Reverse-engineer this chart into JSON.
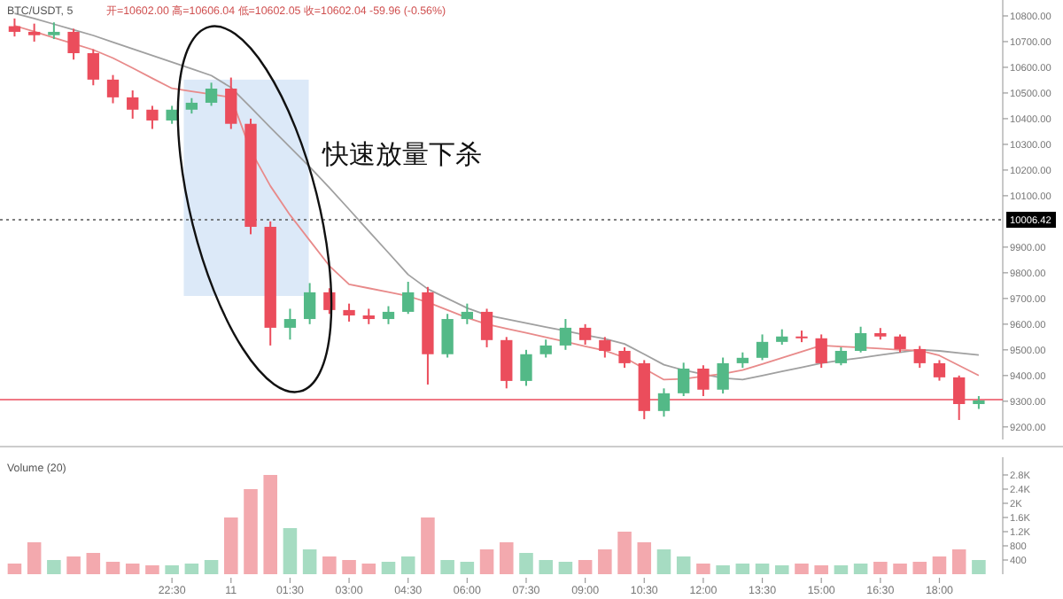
{
  "chart_data": [
    {
      "type": "candlestick",
      "title": "BTC/USDT, 5",
      "subtitle": "开=10602.00 高=10606.04 低=10602.05 收=10602.04 -59.96 (-0.56%)",
      "categories": [
        null,
        null,
        null,
        null,
        null,
        null,
        null,
        null,
        null,
        null,
        null,
        null,
        null,
        null,
        null,
        null,
        null,
        null,
        null,
        null,
        null,
        null,
        null,
        null,
        null,
        null,
        null,
        null,
        null,
        null,
        null,
        null,
        null,
        null,
        null,
        null,
        null,
        null,
        null,
        null,
        null,
        null,
        null,
        null,
        null,
        null,
        null,
        null,
        null,
        null
      ],
      "ohlc": [
        [
          10760,
          10790,
          10720,
          10738
        ],
        [
          10738,
          10770,
          10700,
          10725
        ],
        [
          10725,
          10775,
          10710,
          10738
        ],
        [
          10738,
          10750,
          10630,
          10655
        ],
        [
          10655,
          10670,
          10530,
          10552
        ],
        [
          10552,
          10570,
          10460,
          10483
        ],
        [
          10483,
          10510,
          10400,
          10435
        ],
        [
          10435,
          10450,
          10360,
          10393
        ],
        [
          10393,
          10450,
          10380,
          10435
        ],
        [
          10435,
          10480,
          10420,
          10462
        ],
        [
          10462,
          10540,
          10450,
          10517
        ],
        [
          10517,
          10560,
          10360,
          10380
        ],
        [
          10380,
          10400,
          9950,
          9979
        ],
        [
          9979,
          10000,
          9517,
          9586
        ],
        [
          9586,
          9660,
          9540,
          9620
        ],
        [
          9620,
          9760,
          9600,
          9724
        ],
        [
          9724,
          9740,
          9640,
          9655
        ],
        [
          9655,
          9680,
          9610,
          9634
        ],
        [
          9634,
          9660,
          9600,
          9620
        ],
        [
          9620,
          9670,
          9600,
          9648
        ],
        [
          9648,
          9765,
          9640,
          9724
        ],
        [
          9724,
          9745,
          9365,
          9483
        ],
        [
          9483,
          9640,
          9470,
          9620
        ],
        [
          9620,
          9680,
          9600,
          9648
        ],
        [
          9648,
          9660,
          9510,
          9538
        ],
        [
          9538,
          9550,
          9350,
          9379
        ],
        [
          9379,
          9500,
          9360,
          9483
        ],
        [
          9483,
          9540,
          9470,
          9517
        ],
        [
          9517,
          9620,
          9500,
          9586
        ],
        [
          9586,
          9600,
          9520,
          9538
        ],
        [
          9538,
          9550,
          9470,
          9496
        ],
        [
          9496,
          9510,
          9430,
          9448
        ],
        [
          9448,
          9460,
          9230,
          9262
        ],
        [
          9262,
          9350,
          9240,
          9331
        ],
        [
          9331,
          9450,
          9320,
          9427
        ],
        [
          9427,
          9440,
          9320,
          9345
        ],
        [
          9345,
          9470,
          9330,
          9448
        ],
        [
          9448,
          9490,
          9430,
          9469
        ],
        [
          9469,
          9560,
          9460,
          9531
        ],
        [
          9531,
          9580,
          9520,
          9552
        ],
        [
          9552,
          9575,
          9530,
          9545
        ],
        [
          9545,
          9560,
          9430,
          9448
        ],
        [
          9448,
          9510,
          9440,
          9496
        ],
        [
          9496,
          9590,
          9490,
          9565
        ],
        [
          9565,
          9585,
          9540,
          9552
        ],
        [
          9552,
          9560,
          9490,
          9503
        ],
        [
          9503,
          9515,
          9430,
          9448
        ],
        [
          9448,
          9460,
          9380,
          9393
        ],
        [
          9393,
          9400,
          9227,
          9289
        ],
        [
          9289,
          9320,
          9270,
          9303
        ]
      ],
      "colors": [
        "#eb4d5c",
        "#eb4d5c",
        "#53b987",
        "#eb4d5c",
        "#eb4d5c",
        "#eb4d5c",
        "#eb4d5c",
        "#eb4d5c",
        "#53b987",
        "#53b987",
        "#53b987",
        "#eb4d5c",
        "#eb4d5c",
        "#eb4d5c",
        "#53b987",
        "#53b987",
        "#eb4d5c",
        "#eb4d5c",
        "#eb4d5c",
        "#53b987",
        "#53b987",
        "#eb4d5c",
        "#53b987",
        "#53b987",
        "#eb4d5c",
        "#eb4d5c",
        "#53b987",
        "#53b987",
        "#53b987",
        "#eb4d5c",
        "#eb4d5c",
        "#eb4d5c",
        "#eb4d5c",
        "#53b987",
        "#53b987",
        "#eb4d5c",
        "#53b987",
        "#53b987",
        "#53b987",
        "#53b987",
        "#eb4d5c",
        "#eb4d5c",
        "#53b987",
        "#53b987",
        "#eb4d5c",
        "#eb4d5c",
        "#eb4d5c",
        "#eb4d5c",
        "#eb4d5c",
        "#53b987"
      ],
      "series": [
        {
          "type": "line",
          "color": "#a0a0a0",
          "values": [
            10810,
            10790,
            10768,
            10746,
            10724,
            10698,
            10672,
            10646,
            10620,
            10594,
            10568,
            10521,
            10444,
            10366,
            10289,
            10212,
            10131,
            10047,
            9962,
            9878,
            9793,
            9737,
            9700,
            9663,
            9635,
            9620,
            9604,
            9589,
            9574,
            9558,
            9543,
            9523,
            9483,
            9442,
            9421,
            9405,
            9390,
            9384,
            9400,
            9416,
            9432,
            9448,
            9459,
            9469,
            9480,
            9490,
            9501,
            9496,
            9488,
            9480
          ]
        },
        {
          "type": "line",
          "color": "#e88a8a",
          "values": [
            10762,
            10739,
            10715,
            10692,
            10668,
            10636,
            10597,
            10557,
            10518,
            10506,
            10495,
            10483,
            10276,
            10138,
            10025,
            9926,
            9827,
            9755,
            9740,
            9725,
            9709,
            9685,
            9655,
            9625,
            9600,
            9583,
            9566,
            9549,
            9532,
            9514,
            9497,
            9470,
            9427,
            9384,
            9387,
            9397,
            9407,
            9421,
            9445,
            9469,
            9493,
            9517,
            9513,
            9509,
            9505,
            9500,
            9497,
            9478,
            9439,
            9400
          ]
        }
      ],
      "ylim": [
        9151,
        10862
      ],
      "yticks": [
        {
          "value": 9200,
          "label": "9200.00"
        },
        {
          "value": 9300,
          "label": "9300.00"
        },
        {
          "value": 9400,
          "label": "9400.00"
        },
        {
          "value": 9500,
          "label": "9500.00"
        },
        {
          "value": 9600,
          "label": "9600.00"
        },
        {
          "value": 9700,
          "label": "9700.00"
        },
        {
          "value": 9800,
          "label": "9800.00"
        },
        {
          "value": 9900,
          "label": "9900.00"
        },
        {
          "value": 10100,
          "label": "10100.00"
        },
        {
          "value": 10200,
          "label": "10200.00"
        },
        {
          "value": 10300,
          "label": "10300.00"
        },
        {
          "value": 10400,
          "label": "10400.00"
        },
        {
          "value": 10500,
          "label": "10500.00"
        },
        {
          "value": 10600,
          "label": "10600.00"
        },
        {
          "value": 10700,
          "label": "10700.00"
        },
        {
          "value": 10800,
          "label": "10800.00"
        }
      ],
      "tick_labels": "y",
      "ref_lines": [
        {
          "axis": "y",
          "value": 10006.42,
          "label": "10006.42",
          "color": "#555555",
          "line_style": "dotted"
        },
        {
          "axis": "y",
          "value": 9306,
          "color": "#eb4d5c"
        }
      ],
      "bands": [
        {
          "axis": "y",
          "from": 9710,
          "to": 10552,
          "color": "#dce9f8"
        }
      ],
      "annotations": [
        "快速放量下杀"
      ]
    },
    {
      "type": "bar",
      "title": "Volume (20)",
      "categories": [
        null,
        null,
        null,
        null,
        null,
        null,
        null,
        null,
        "22:30",
        null,
        null,
        "11",
        null,
        null,
        "01:30",
        null,
        null,
        "03:00",
        null,
        null,
        "04:30",
        null,
        null,
        "06:00",
        null,
        null,
        "07:30",
        null,
        null,
        "09:00",
        null,
        null,
        "10:30",
        null,
        null,
        "12:00",
        null,
        null,
        "13:30",
        null,
        null,
        "15:00",
        null,
        null,
        "16:30",
        null,
        null,
        "18:00",
        null,
        null
      ],
      "values": [
        300,
        900,
        400,
        500,
        600,
        350,
        300,
        250,
        250,
        300,
        400,
        1600,
        2400,
        2800,
        1300,
        700,
        500,
        400,
        300,
        350,
        500,
        1600,
        400,
        350,
        700,
        900,
        600,
        400,
        350,
        400,
        700,
        1200,
        900,
        700,
        500,
        300,
        250,
        300,
        300,
        250,
        300,
        250,
        250,
        300,
        350,
        300,
        350,
        500,
        700,
        400
      ],
      "colors": [
        "#f3a9ae",
        "#f3a9ae",
        "#a6dcc2",
        "#f3a9ae",
        "#f3a9ae",
        "#f3a9ae",
        "#f3a9ae",
        "#f3a9ae",
        "#a6dcc2",
        "#a6dcc2",
        "#a6dcc2",
        "#f3a9ae",
        "#f3a9ae",
        "#f3a9ae",
        "#a6dcc2",
        "#a6dcc2",
        "#f3a9ae",
        "#f3a9ae",
        "#f3a9ae",
        "#a6dcc2",
        "#a6dcc2",
        "#f3a9ae",
        "#a6dcc2",
        "#a6dcc2",
        "#f3a9ae",
        "#f3a9ae",
        "#a6dcc2",
        "#a6dcc2",
        "#a6dcc2",
        "#f3a9ae",
        "#f3a9ae",
        "#f3a9ae",
        "#f3a9ae",
        "#a6dcc2",
        "#a6dcc2",
        "#f3a9ae",
        "#a6dcc2",
        "#a6dcc2",
        "#a6dcc2",
        "#a6dcc2",
        "#f3a9ae",
        "#f3a9ae",
        "#a6dcc2",
        "#a6dcc2",
        "#f3a9ae",
        "#f3a9ae",
        "#f3a9ae",
        "#f3a9ae",
        "#f3a9ae",
        "#a6dcc2"
      ],
      "ylim": [
        0,
        3300
      ],
      "yticks": [
        {
          "value": 400,
          "label": "400"
        },
        {
          "value": 800,
          "label": "800"
        },
        {
          "value": 1200,
          "label": "1.2K"
        },
        {
          "value": 1600,
          "label": "1.6K"
        },
        {
          "value": 2000,
          "label": "2K"
        },
        {
          "value": 2400,
          "label": "2.4K"
        },
        {
          "value": 2800,
          "label": "2.8K"
        }
      ]
    }
  ]
}
